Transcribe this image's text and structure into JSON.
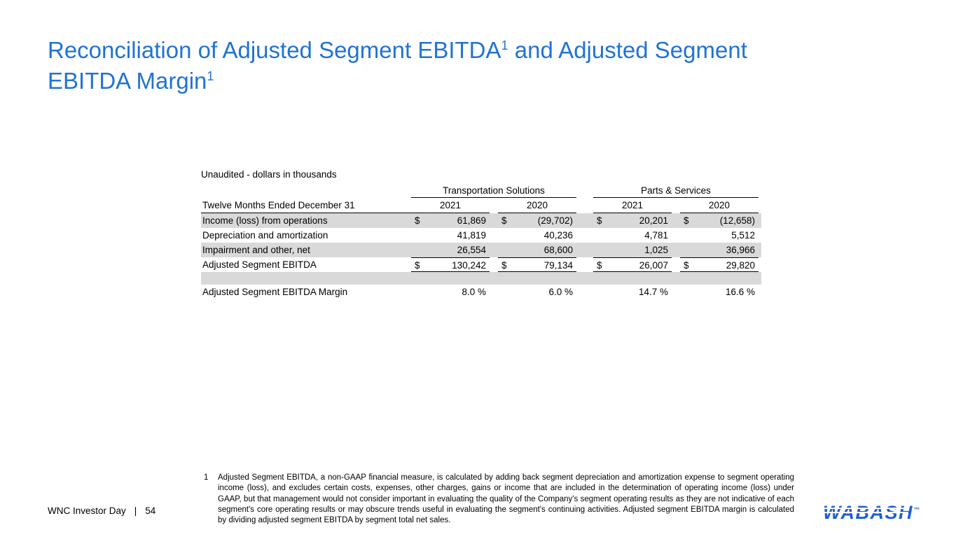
{
  "colors": {
    "accent_blue": "#2173D3",
    "row_shade": "#D9D9D9",
    "logo_blue": "#1B5ED6"
  },
  "title": {
    "part1": "Reconciliation of Adjusted Segment EBITDA",
    "sup1": "1",
    "part2": " and Adjusted Segment EBITDA Margin",
    "sup2": "1"
  },
  "table": {
    "note": "Unaudited - dollars in thousands",
    "group_headers": [
      "Transportation Solutions",
      "Parts & Services"
    ],
    "row_header": "Twelve Months Ended December 31",
    "year_cols": [
      "2021",
      "2020",
      "2021",
      "2020"
    ],
    "rows": [
      {
        "label": "Income (loss) from operations",
        "cur": "$",
        "values": [
          "61,869",
          "(29,702)",
          "20,201",
          "(12,658)"
        ]
      },
      {
        "label": "Depreciation and amortization",
        "values": [
          "41,819",
          "40,236",
          "4,781",
          "5,512"
        ]
      },
      {
        "label": "Impairment and other, net",
        "values": [
          "26,554",
          "68,600",
          "1,025",
          "36,966"
        ]
      },
      {
        "label": "Adjusted Segment EBITDA",
        "cur": "$",
        "values": [
          "130,242",
          "79,134",
          "26,007",
          "29,820"
        ]
      },
      {
        "label": "Adjusted Segment EBITDA Margin",
        "values": [
          "8.0 %",
          "6.0 %",
          "14.7 %",
          "16.6 %"
        ]
      }
    ]
  },
  "footnote": {
    "marker": "1",
    "text": "Adjusted Segment EBITDA, a non-GAAP financial measure, is calculated by adding back segment depreciation and amortization expense to segment operating income (loss), and excludes certain costs, expenses, other charges, gains or income that are included in the determination of operating income (loss) under GAAP, but that management would not consider important in evaluating the quality of the Company's segment operating results as they are not indicative of each segment's core operating results or may obscure trends useful in evaluating the segment's continuing activities. Adjusted segment EBITDA margin is calculated by dividing adjusted segment EBITDA by segment total net sales."
  },
  "footer": {
    "left": "WNC Investor Day",
    "separator": "|",
    "page": "54"
  },
  "logo": {
    "text": "WABASH",
    "tm": "™"
  }
}
